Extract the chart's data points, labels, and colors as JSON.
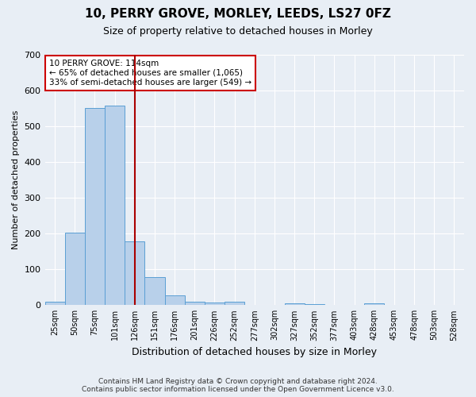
{
  "title_line1": "10, PERRY GROVE, MORLEY, LEEDS, LS27 0FZ",
  "title_line2": "Size of property relative to detached houses in Morley",
  "xlabel": "Distribution of detached houses by size in Morley",
  "ylabel": "Number of detached properties",
  "footer_line1": "Contains HM Land Registry data © Crown copyright and database right 2024.",
  "footer_line2": "Contains public sector information licensed under the Open Government Licence v3.0.",
  "categories": [
    "25sqm",
    "50sqm",
    "75sqm",
    "101sqm",
    "126sqm",
    "151sqm",
    "176sqm",
    "201sqm",
    "226sqm",
    "252sqm",
    "277sqm",
    "302sqm",
    "327sqm",
    "352sqm",
    "377sqm",
    "403sqm",
    "428sqm",
    "453sqm",
    "478sqm",
    "503sqm",
    "528sqm"
  ],
  "values": [
    10,
    203,
    551,
    557,
    178,
    78,
    27,
    10,
    7,
    10,
    0,
    0,
    5,
    3,
    0,
    0,
    5,
    0,
    0,
    0,
    0
  ],
  "bar_color": "#b8d0ea",
  "bar_edge_color": "#5a9fd4",
  "vline_x_index": 4,
  "vline_color": "#aa0000",
  "ylim": [
    0,
    700
  ],
  "yticks": [
    0,
    100,
    200,
    300,
    400,
    500,
    600,
    700
  ],
  "annotation_line1": "10 PERRY GROVE: 114sqm",
  "annotation_line2": "← 65% of detached houses are smaller (1,065)",
  "annotation_line3": "33% of semi-detached houses are larger (549) →",
  "annotation_box_color": "#ffffff",
  "annotation_box_edge_color": "#cc0000",
  "background_color": "#e8eef5",
  "plot_bg_color": "#e8eef5",
  "grid_color": "#ffffff",
  "title_fontsize": 11,
  "subtitle_fontsize": 9,
  "ylabel_fontsize": 8,
  "xlabel_fontsize": 9
}
